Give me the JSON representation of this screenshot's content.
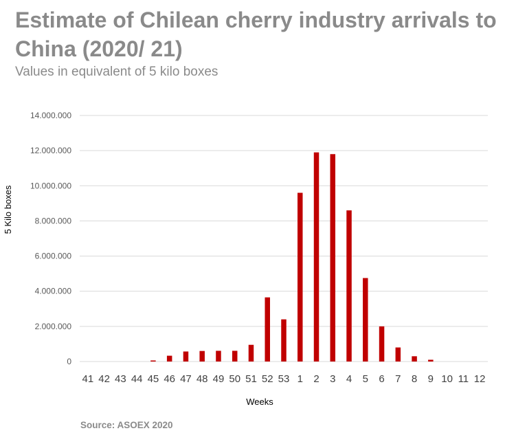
{
  "header": {
    "title": "Estimate of Chilean cherry industry arrivals to China (2020/ 21)",
    "subtitle": "Values in equivalent of 5 kilo boxes"
  },
  "footer": {
    "source": "Source: ASOEX 2020"
  },
  "colors": {
    "bar": "#c00000",
    "grid": "#d9d9d9",
    "title": "#8a8a8a"
  },
  "chart_data": {
    "type": "bar",
    "categories": [
      "41",
      "42",
      "43",
      "44",
      "45",
      "46",
      "47",
      "48",
      "49",
      "50",
      "51",
      "52",
      "53",
      "1",
      "2",
      "3",
      "4",
      "5",
      "6",
      "7",
      "8",
      "9",
      "10",
      "11",
      "12"
    ],
    "series": [
      {
        "values": [
          0,
          0,
          0,
          0,
          60000,
          330000,
          570000,
          600000,
          610000,
          610000,
          950000,
          3650000,
          2400000,
          9600000,
          11900000,
          11800000,
          8600000,
          4750000,
          2000000,
          800000,
          300000,
          100000,
          0,
          0,
          0
        ]
      }
    ],
    "xlabel": "Weeks",
    "ylabel": "5 Kilo boxes",
    "ylim": [
      0,
      14000000
    ],
    "yticks": [
      0,
      2000000,
      4000000,
      6000000,
      8000000,
      10000000,
      12000000,
      14000000
    ],
    "ytick_labels": [
      "0",
      "2.000.000",
      "4.000.000",
      "6.000.000",
      "8.000.000",
      "10.000.000",
      "12.000.000",
      "14.000.000"
    ],
    "grid": true,
    "legend": "none"
  }
}
